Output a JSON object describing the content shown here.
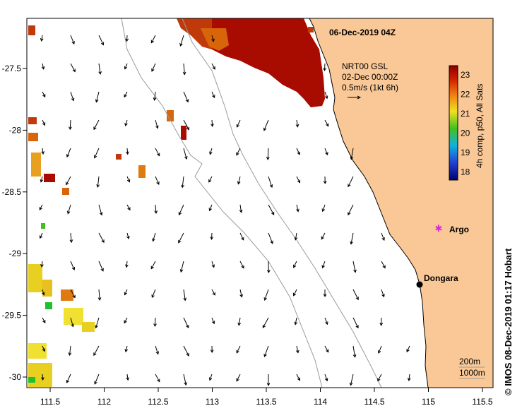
{
  "map": {
    "title": "06-Dec-2019 04Z",
    "credit": "© IMOS 08-Dec-2019 01:17 Hobart",
    "x_ticks": [
      "111.5",
      "112",
      "112.5",
      "113",
      "113.5",
      "114",
      "114.5",
      "115",
      "115.5"
    ],
    "y_ticks": [
      "-27.5",
      "-28",
      "-28.5",
      "-29",
      "-29.5",
      "-30"
    ],
    "current_legend": {
      "source": "NRT00 GSL",
      "time": "02-Dec 00:00Z",
      "scale": "0.5m/s (1kt 6h)"
    },
    "colorbar": {
      "label": "4h comp, p50, All Sats",
      "ticks": [
        "23",
        "22",
        "21",
        "20",
        "19",
        "18"
      ]
    },
    "places": [
      {
        "name": "Dongara",
        "marker": "black-dot"
      },
      {
        "name": "Argo",
        "marker": "magenta-star"
      }
    ],
    "depth_legend": {
      "line1": "200m",
      "line2": "1000m"
    },
    "colors": {
      "land": "#f9c896",
      "warm_sst": "#a80b00",
      "mid_sst": "#d9650a",
      "argo": "#e020e0",
      "contour": "#9a9a9a"
    }
  }
}
